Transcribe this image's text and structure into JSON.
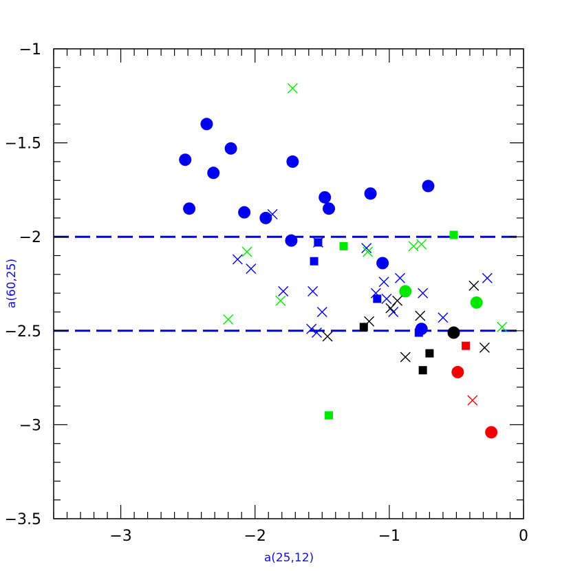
{
  "chart_data": {
    "type": "scatter",
    "xlabel": "a(25,12)",
    "ylabel": "a(60,25)",
    "xlim": [
      -3.5,
      0
    ],
    "ylim": [
      -3.5,
      -1
    ],
    "x_ticks": [
      {
        "value": -3,
        "label": "−3"
      },
      {
        "value": -2,
        "label": "−2"
      },
      {
        "value": -1,
        "label": "−1"
      },
      {
        "value": 0,
        "label": "0"
      }
    ],
    "y_ticks": [
      {
        "value": -1,
        "label": "−1"
      },
      {
        "value": -1.5,
        "label": "−1.5"
      },
      {
        "value": -2,
        "label": "−2"
      },
      {
        "value": -2.5,
        "label": "−2.5"
      },
      {
        "value": -3,
        "label": "−3"
      },
      {
        "value": -3.5,
        "label": "−3.5"
      }
    ],
    "reference_lines": [
      {
        "y": -2.0,
        "style": "dashed",
        "color": "#0000e0"
      },
      {
        "y": -2.5,
        "style": "dashed",
        "color": "#0000e0"
      }
    ],
    "colors": {
      "blue": "#0000f0",
      "green": "#00e800",
      "black": "#000000",
      "red": "#f00000"
    },
    "series": [
      {
        "marker": "circle",
        "color": "blue",
        "points": [
          [
            -2.52,
            -1.59
          ],
          [
            -2.36,
            -1.4
          ],
          [
            -2.18,
            -1.53
          ],
          [
            -2.49,
            -1.85
          ],
          [
            -2.31,
            -1.66
          ],
          [
            -2.08,
            -1.87
          ],
          [
            -1.92,
            -1.9
          ],
          [
            -1.72,
            -1.6
          ],
          [
            -1.73,
            -2.02
          ],
          [
            -1.48,
            -1.79
          ],
          [
            -1.45,
            -1.85
          ],
          [
            -1.14,
            -1.77
          ],
          [
            -0.71,
            -1.73
          ],
          [
            -1.05,
            -2.14
          ],
          [
            -0.76,
            -2.49
          ]
        ]
      },
      {
        "marker": "circle",
        "color": "green",
        "points": [
          [
            -0.88,
            -2.29
          ],
          [
            -0.35,
            -2.35
          ]
        ]
      },
      {
        "marker": "circle",
        "color": "black",
        "points": [
          [
            -0.52,
            -2.51
          ]
        ]
      },
      {
        "marker": "circle",
        "color": "red",
        "points": [
          [
            -0.49,
            -2.72
          ],
          [
            -0.24,
            -3.04
          ]
        ]
      },
      {
        "marker": "square",
        "color": "blue",
        "points": [
          [
            -1.53,
            -2.03
          ],
          [
            -1.56,
            -2.13
          ],
          [
            -1.09,
            -2.33
          ],
          [
            -0.78,
            -2.51
          ]
        ]
      },
      {
        "marker": "square",
        "color": "green",
        "points": [
          [
            -1.34,
            -2.05
          ],
          [
            -0.52,
            -1.99
          ],
          [
            -1.45,
            -2.95
          ]
        ]
      },
      {
        "marker": "square",
        "color": "black",
        "points": [
          [
            -1.19,
            -2.48
          ],
          [
            -0.75,
            -2.71
          ],
          [
            -0.7,
            -2.62
          ]
        ]
      },
      {
        "marker": "square",
        "color": "red",
        "points": [
          [
            -0.43,
            -2.58
          ]
        ]
      },
      {
        "marker": "cross",
        "color": "blue",
        "points": [
          [
            -1.87,
            -1.88
          ],
          [
            -2.13,
            -2.12
          ],
          [
            -2.03,
            -2.17
          ],
          [
            -1.79,
            -2.29
          ],
          [
            -1.57,
            -2.29
          ],
          [
            -1.5,
            -2.4
          ],
          [
            -1.58,
            -2.49
          ],
          [
            -1.54,
            -2.51
          ],
          [
            -1.53,
            -2.03
          ],
          [
            -1.17,
            -2.06
          ],
          [
            -1.04,
            -2.24
          ],
          [
            -1.1,
            -2.3
          ],
          [
            -1.02,
            -2.33
          ],
          [
            -0.92,
            -2.22
          ],
          [
            -0.97,
            -2.4
          ],
          [
            -0.75,
            -2.3
          ],
          [
            -0.6,
            -2.43
          ],
          [
            -0.27,
            -2.22
          ]
        ]
      },
      {
        "marker": "cross",
        "color": "green",
        "points": [
          [
            -1.72,
            -1.21
          ],
          [
            -2.06,
            -2.08
          ],
          [
            -2.2,
            -2.44
          ],
          [
            -1.81,
            -2.34
          ],
          [
            -1.16,
            -2.08
          ],
          [
            -0.82,
            -2.05
          ],
          [
            -0.76,
            -2.04
          ],
          [
            -0.16,
            -2.48
          ]
        ]
      },
      {
        "marker": "cross",
        "color": "black",
        "points": [
          [
            -1.46,
            -2.53
          ],
          [
            -1.15,
            -2.45
          ],
          [
            -0.99,
            -2.38
          ],
          [
            -0.94,
            -2.34
          ],
          [
            -0.77,
            -2.42
          ],
          [
            -0.88,
            -2.64
          ],
          [
            -0.37,
            -2.26
          ],
          [
            -0.29,
            -2.59
          ]
        ]
      },
      {
        "marker": "cross",
        "color": "red",
        "points": [
          [
            -0.38,
            -2.87
          ]
        ]
      }
    ]
  }
}
